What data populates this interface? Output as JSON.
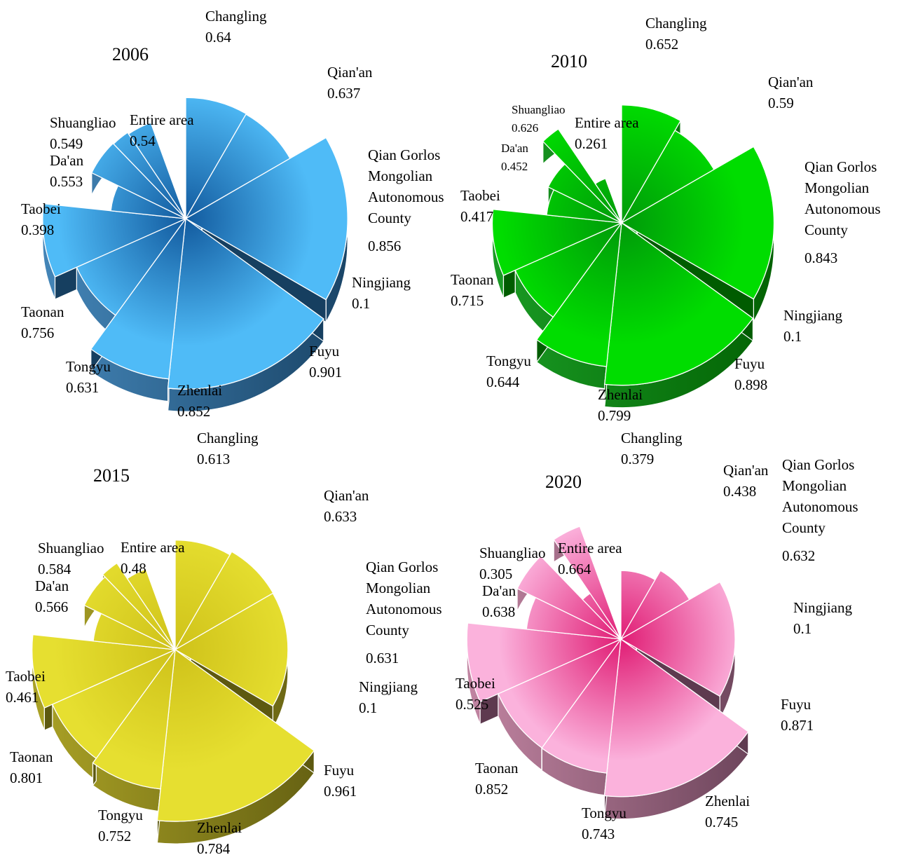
{
  "chart_data": [
    {
      "type": "pie",
      "title": "2006",
      "categories": [
        "Changling",
        "Qian'an",
        "Qian Gorlos Mongolian Autonomous County",
        "Ningjiang",
        "Fuyu",
        "Zhenlai",
        "Tongyu",
        "Taonan",
        "Taobei",
        "Da'an",
        "Shuangliao",
        "Entire area"
      ],
      "values": [
        "0.64",
        "0.637",
        "0.856",
        "0.1",
        "0.901",
        "0.852",
        "0.631",
        "0.756",
        "0.398",
        "0.553",
        "0.549",
        "0.54"
      ],
      "colors": {
        "top": "#4fbbf7",
        "center": "#125a9e",
        "side_light": "#4a8fc4",
        "side_dark": "#163f60"
      }
    },
    {
      "type": "pie",
      "title": "2010",
      "categories": [
        "Changling",
        "Qian'an",
        "Qian Gorlos Mongolian Autonomous County",
        "Ningjiang",
        "Fuyu",
        "Zhenlai",
        "Tongyu",
        "Taonan",
        "Taobei",
        "Da'an",
        "Shuangliao",
        "Entire area"
      ],
      "values": [
        "0.652",
        "0.59",
        "0.843",
        "0.1",
        "0.898",
        "0.799",
        "0.644",
        "0.715",
        "0.417",
        "0.452",
        "0.626",
        "0.261"
      ],
      "colors": {
        "top": "#00dd00",
        "center": "#009a0a",
        "side_light": "#1ea52a",
        "side_dark": "#005c00"
      }
    },
    {
      "type": "pie",
      "title": "2015",
      "categories": [
        "Changling",
        "Qian'an",
        "Qian Gorlos Mongolian Autonomous County",
        "Ningjiang",
        "Fuyu",
        "Zhenlai",
        "Tongyu",
        "Taonan",
        "Taobei",
        "Da'an",
        "Shuangliao",
        "Entire area"
      ],
      "values": [
        "0.613",
        "0.633",
        "0.631",
        "0.1",
        "0.961",
        "0.784",
        "0.752",
        "0.801",
        "0.461",
        "0.566",
        "0.584",
        "0.48"
      ],
      "colors": {
        "top": "#e6df30",
        "center": "#cfc21a",
        "side_light": "#b3aa28",
        "side_dark": "#5d5910"
      }
    },
    {
      "type": "pie",
      "title": "2020",
      "categories": [
        "Changling",
        "Qian'an",
        "Qian Gorlos Mongolian Autonomous County",
        "Ningjiang",
        "Fuyu",
        "Zhenlai",
        "Tongyu",
        "Taonan",
        "Taobei",
        "Da'an",
        "Shuangliao",
        "Entire area"
      ],
      "values": [
        "0.379",
        "0.438",
        "0.632",
        "0.1",
        "0.871",
        "0.745",
        "0.743",
        "0.852",
        "0.525",
        "0.638",
        "0.305",
        "0.664"
      ],
      "colors": {
        "top": "#fbb2dc",
        "center": "#e01c74",
        "side_light": "#c98aa8",
        "side_dark": "#5e3a4f"
      }
    }
  ]
}
